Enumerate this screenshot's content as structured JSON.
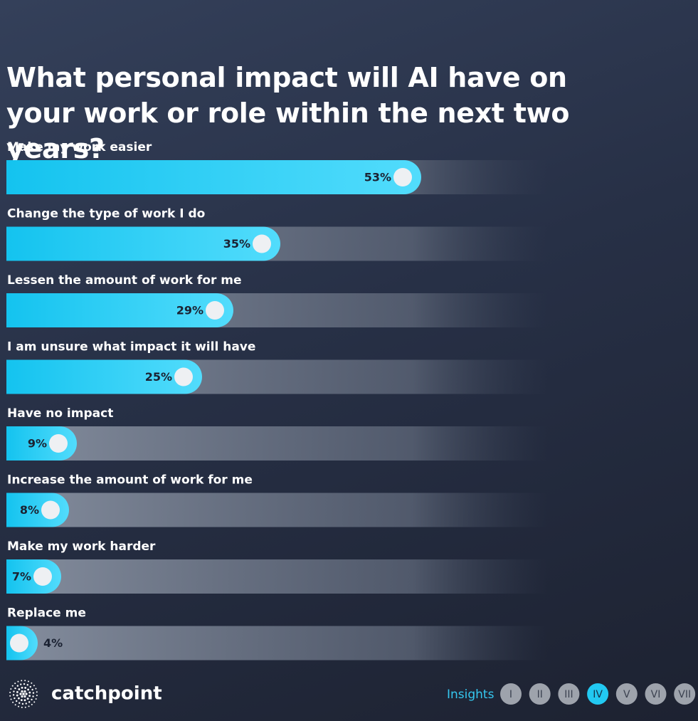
{
  "chart_data": {
    "type": "bar",
    "orientation": "horizontal",
    "title": "What personal impact will AI have on your work or role within the next two years?",
    "categories": [
      "Make my work easier",
      "Change the type of work I do",
      "Lessen the amount of work for me",
      "I am unsure what impact it will have",
      "Have no impact",
      "Increase the amount of work for me",
      "Make my work harder",
      "Replace me"
    ],
    "values": [
      53,
      35,
      29,
      25,
      9,
      8,
      7,
      4
    ],
    "value_labels": [
      "53%",
      "35%",
      "29%",
      "25%",
      "9%",
      "8%",
      "7%",
      "4%"
    ],
    "color": "#22c9f2"
  },
  "footer": {
    "logo": "catchpoint",
    "nav_label": "Insights",
    "pages": [
      "I",
      "II",
      "III",
      "IV",
      "V",
      "VI",
      "VII"
    ],
    "active_page": 3
  }
}
